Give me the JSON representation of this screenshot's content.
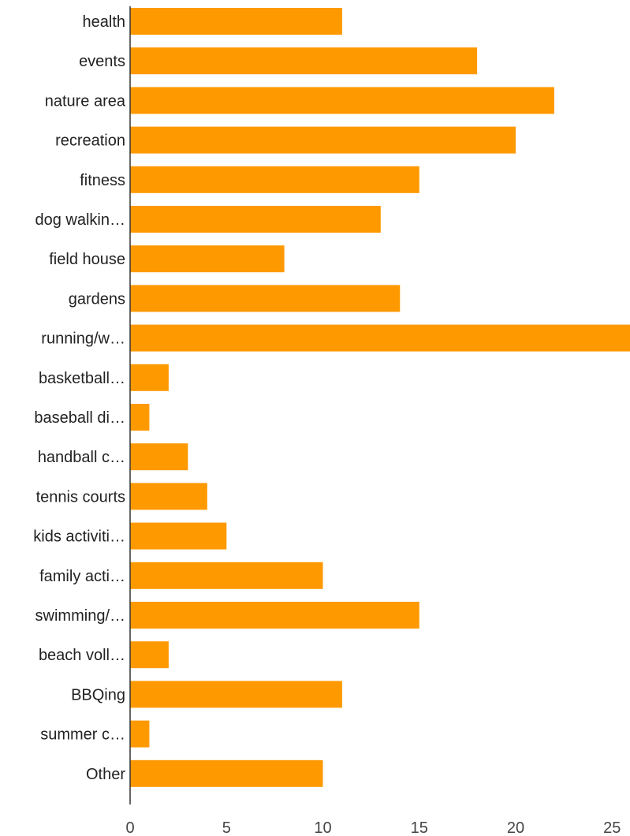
{
  "chart_data": {
    "type": "bar",
    "orientation": "horizontal",
    "categories": [
      "health",
      "events",
      "nature area",
      "recreation",
      "fitness",
      "dog walkin…",
      "field house",
      "gardens",
      "running/w…",
      "basketball…",
      "baseball di…",
      "handball c…",
      "tennis courts",
      "kids activiti…",
      "family acti…",
      "swimming/…",
      "beach voll…",
      "BBQing",
      "summer c…",
      "Other"
    ],
    "values": [
      11,
      18,
      22,
      20,
      15,
      13,
      8,
      14,
      26,
      2,
      1,
      3,
      4,
      5,
      10,
      15,
      2,
      11,
      1,
      10
    ],
    "xlim": [
      0,
      26
    ],
    "xticks": [
      0,
      5,
      10,
      15,
      20,
      25
    ],
    "title": "",
    "xlabel": "",
    "ylabel": "",
    "grid": false,
    "legend": "none",
    "bar_color": "#ff9900",
    "axis_color": "#333333"
  }
}
